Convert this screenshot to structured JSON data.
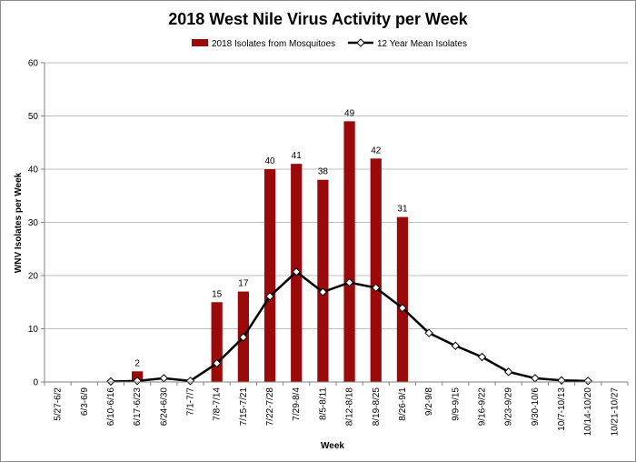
{
  "chart_data": {
    "type": "bar",
    "title": "2018 West Nile Virus Activity per Week",
    "xlabel": "Week",
    "ylabel": "WNV Isolates per Week",
    "ylim": [
      0,
      60
    ],
    "yticks": [
      0,
      10,
      20,
      30,
      40,
      50,
      60
    ],
    "grid": true,
    "legend_position": "top",
    "categories": [
      "5/27-6/2",
      "6/3-6/9",
      "6/10-6/16",
      "6/17-6/23",
      "6/24-6/30",
      "7/1-7/7",
      "7/8-7/14",
      "7/15-7/21",
      "7/22-7/28",
      "7/29-8/4",
      "8/5-8/11",
      "8/12-8/18",
      "8/19-8/25",
      "8/26-9/1",
      "9/2-9/8",
      "9/9-9/15",
      "9/16-9/22",
      "9/23-9/29",
      "9/30-10/6",
      "10/7-10/13",
      "10/14-10/20",
      "10/21-10/27"
    ],
    "series": [
      {
        "name": "2018 Isolates from Mosquitoes",
        "type": "bar",
        "color": "#9b0a0a",
        "values": [
          null,
          null,
          null,
          2,
          null,
          null,
          15,
          17,
          40,
          41,
          38,
          49,
          42,
          31,
          null,
          null,
          null,
          null,
          null,
          null,
          null,
          null
        ],
        "data_labels": [
          null,
          null,
          null,
          "2",
          null,
          null,
          "15",
          "17",
          "40",
          "41",
          "38",
          "49",
          "42",
          "31",
          null,
          null,
          null,
          null,
          null,
          null,
          null,
          null
        ]
      },
      {
        "name": "12 Year Mean Isolates",
        "type": "line",
        "color": "#000000",
        "marker": "diamond",
        "values": [
          null,
          null,
          0.1,
          0.2,
          0.7,
          0.2,
          3.5,
          8.4,
          16.1,
          20.7,
          16.9,
          18.7,
          17.7,
          13.9,
          9.2,
          6.8,
          4.7,
          1.9,
          0.7,
          0.3,
          0.2,
          null
        ]
      }
    ]
  }
}
